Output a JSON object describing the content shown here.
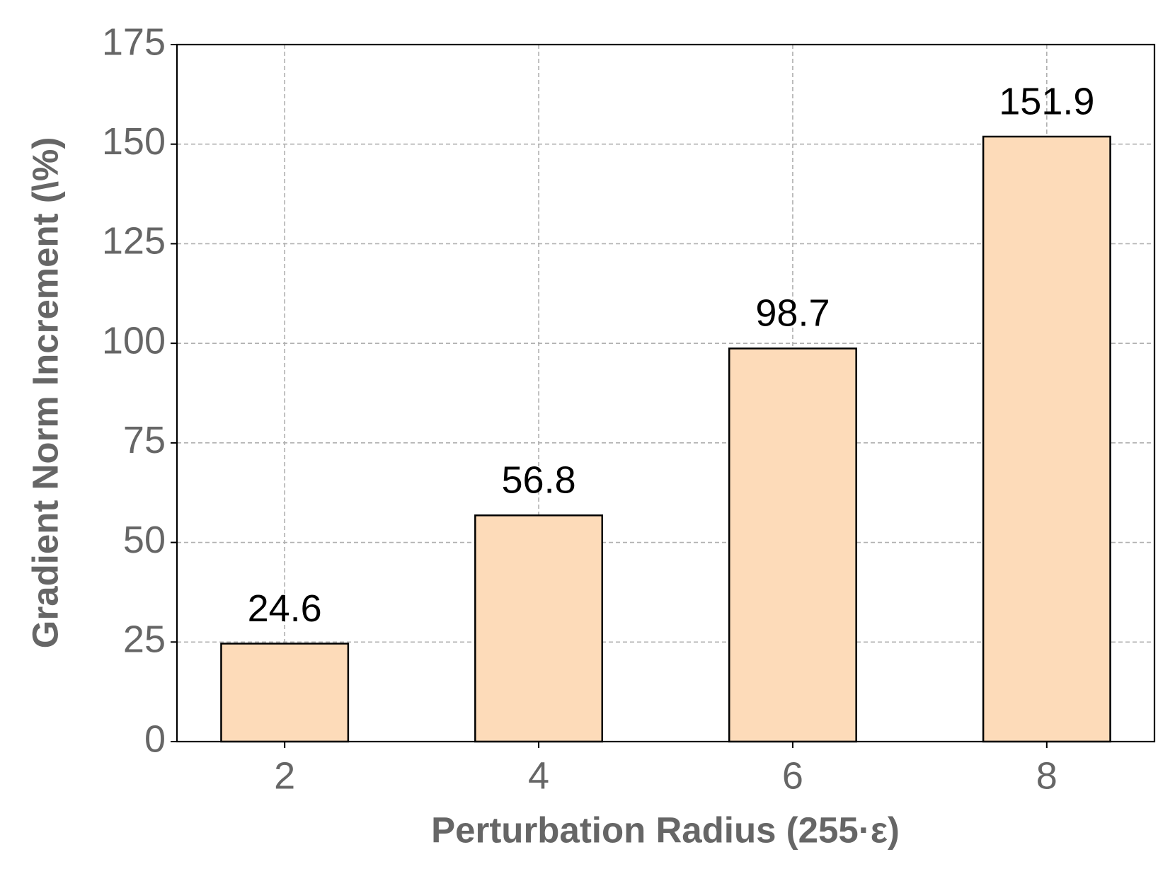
{
  "chart_data": {
    "type": "bar",
    "x_label": "Perturbation Radius (255·ε)",
    "y_label": "Gradient Norm Increment (\\%)",
    "categories": [
      "2",
      "4",
      "6",
      "8"
    ],
    "values": [
      24.6,
      56.8,
      98.7,
      151.9
    ],
    "color": "#fddbb9",
    "edge_color": "#000000",
    "ylim": [
      0,
      175
    ],
    "yticks": [
      0,
      25,
      50,
      75,
      100,
      125,
      150,
      175
    ],
    "grid": true
  }
}
